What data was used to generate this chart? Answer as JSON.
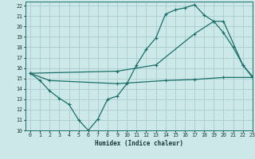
{
  "xlabel": "Humidex (Indice chaleur)",
  "bg_color": "#cce8e8",
  "grid_color": "#aacccc",
  "line_color": "#1a6e6a",
  "xlim": [
    -0.5,
    23
  ],
  "ylim": [
    10,
    22.4
  ],
  "xticks": [
    0,
    1,
    2,
    3,
    4,
    5,
    6,
    7,
    8,
    9,
    10,
    11,
    12,
    13,
    14,
    15,
    16,
    17,
    18,
    19,
    20,
    21,
    22,
    23
  ],
  "yticks": [
    10,
    11,
    12,
    13,
    14,
    15,
    16,
    17,
    18,
    19,
    20,
    21,
    22
  ],
  "line1_x": [
    0,
    1,
    2,
    3,
    4,
    5,
    6,
    7,
    8,
    9,
    10,
    11,
    12,
    13,
    14,
    15,
    16,
    17,
    18,
    19,
    20,
    21,
    22,
    23
  ],
  "line1_y": [
    15.5,
    14.8,
    13.8,
    13.1,
    12.5,
    11.0,
    10.0,
    11.1,
    13.0,
    13.3,
    14.5,
    16.3,
    17.8,
    18.9,
    21.2,
    21.6,
    21.8,
    22.1,
    21.1,
    20.5,
    19.4,
    18.0,
    16.3,
    15.1
  ],
  "line2_x": [
    0,
    9,
    13,
    17,
    19,
    20,
    22,
    23
  ],
  "line2_y": [
    15.5,
    15.7,
    16.3,
    19.3,
    20.5,
    20.5,
    16.3,
    15.2
  ],
  "line3_x": [
    0,
    2,
    9,
    14,
    17,
    20,
    23
  ],
  "line3_y": [
    15.5,
    14.8,
    14.5,
    14.8,
    14.9,
    15.1,
    15.1
  ]
}
